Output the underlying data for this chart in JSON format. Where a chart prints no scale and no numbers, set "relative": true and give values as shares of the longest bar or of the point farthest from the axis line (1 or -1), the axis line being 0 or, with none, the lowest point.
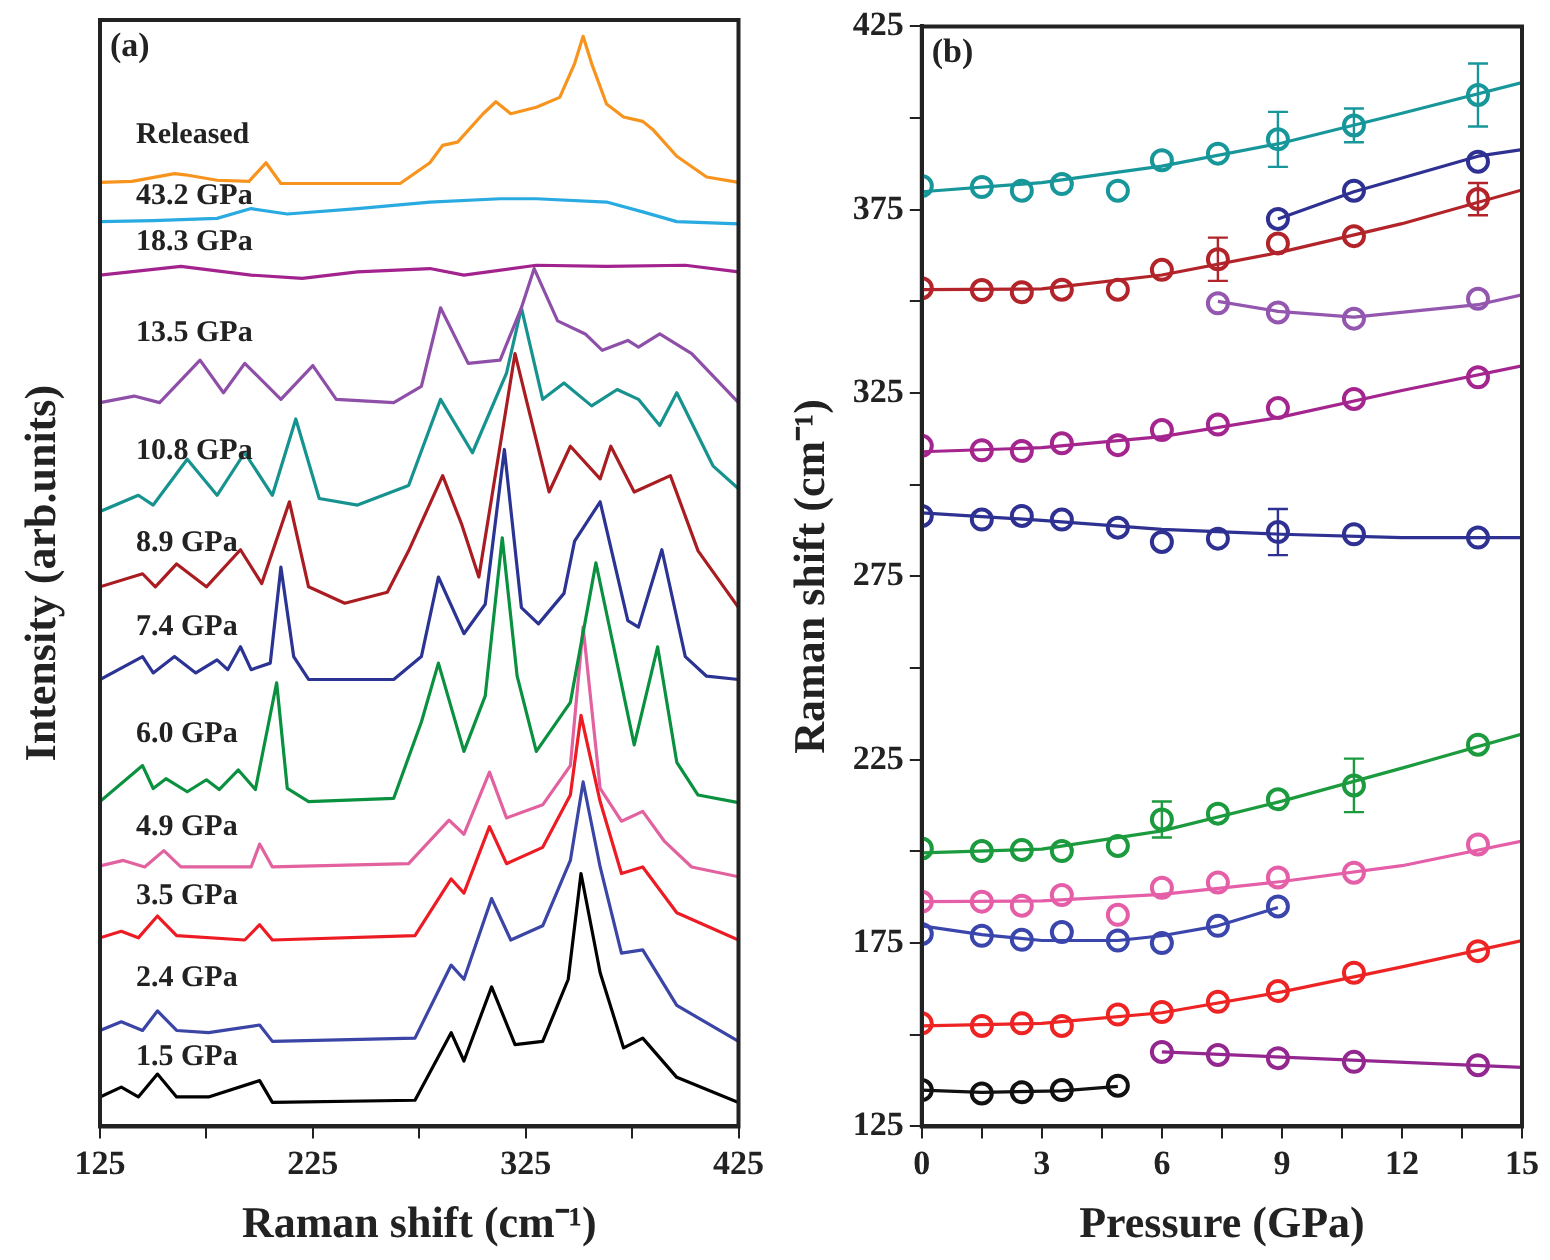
{
  "chart_data": [
    {
      "type": "line",
      "relative": true,
      "xlabel": "Raman shift (cm⁻¹)",
      "ylabel": "Intensity (arb.units)",
      "annotations": [
        "(a)"
      ],
      "tick_labels": "x",
      "xlim": [
        125,
        425
      ],
      "xticks": [
        125,
        {
          "value": 175,
          "label": null
        },
        225,
        {
          "value": 275,
          "label": null
        },
        325,
        {
          "value": 375,
          "label": null
        },
        425
      ],
      "legend": false,
      "series": [
        {
          "name": "Released",
          "color": "#f7941d",
          "x": [
            125,
            140,
            160,
            165,
            180,
            195,
            203,
            210,
            266,
            280,
            286,
            293,
            305,
            311,
            318,
            330,
            341,
            348,
            352,
            356,
            363,
            371,
            380,
            385,
            396,
            410,
            425
          ],
          "values": [
            0.866,
            0.867,
            0.874,
            0.873,
            0.868,
            0.867,
            0.884,
            0.865,
            0.865,
            0.884,
            0.9,
            0.903,
            0.929,
            0.94,
            0.929,
            0.935,
            0.944,
            0.975,
            1.0,
            0.975,
            0.938,
            0.926,
            0.922,
            0.914,
            0.89,
            0.871,
            0.866
          ]
        },
        {
          "name": "43.2 GPa",
          "color": "#29abe2",
          "x": [
            125,
            150,
            180,
            196,
            213,
            246,
            280,
            313,
            330,
            363,
            380,
            396,
            425
          ],
          "values": [
            0.83,
            0.831,
            0.833,
            0.842,
            0.837,
            0.842,
            0.848,
            0.851,
            0.851,
            0.848,
            0.839,
            0.83,
            0.828
          ]
        },
        {
          "name": "18.3 GPa",
          "color": "#a3238e",
          "x": [
            125,
            163,
            196,
            220,
            246,
            280,
            296,
            330,
            363,
            400,
            425
          ],
          "values": [
            0.781,
            0.789,
            0.781,
            0.778,
            0.784,
            0.787,
            0.781,
            0.79,
            0.789,
            0.79,
            0.784
          ]
        },
        {
          "name": "13.5 GPa",
          "color": "#8e4fa8",
          "x": [
            125,
            141,
            153,
            172,
            183,
            193,
            210,
            225,
            236,
            263,
            276,
            285,
            298,
            313,
            323,
            329,
            340,
            353,
            361,
            373,
            378,
            388,
            403,
            425
          ],
          "values": [
            0.664,
            0.67,
            0.664,
            0.703,
            0.673,
            0.7,
            0.667,
            0.698,
            0.667,
            0.664,
            0.679,
            0.751,
            0.7,
            0.703,
            0.751,
            0.787,
            0.739,
            0.727,
            0.712,
            0.721,
            0.715,
            0.727,
            0.709,
            0.664
          ]
        },
        {
          "name": "10.8 GPa",
          "color": "#16928f",
          "x": [
            125,
            143,
            150,
            166,
            180,
            193,
            206,
            217,
            228,
            246,
            270,
            285,
            300,
            316,
            323,
            333,
            343,
            356,
            368,
            378,
            388,
            396,
            413,
            425
          ],
          "values": [
            0.564,
            0.579,
            0.57,
            0.612,
            0.579,
            0.618,
            0.579,
            0.649,
            0.576,
            0.57,
            0.588,
            0.667,
            0.618,
            0.691,
            0.751,
            0.667,
            0.682,
            0.661,
            0.676,
            0.667,
            0.643,
            0.673,
            0.606,
            0.585
          ]
        },
        {
          "name": "8.9 GPa",
          "color": "#a91d22",
          "x": [
            125,
            145,
            151,
            161,
            175,
            191,
            201,
            214,
            223,
            240,
            260,
            270,
            286,
            295,
            303,
            320,
            326,
            336,
            346,
            360,
            365,
            376,
            393,
            406,
            425
          ],
          "values": [
            0.495,
            0.507,
            0.495,
            0.516,
            0.495,
            0.529,
            0.498,
            0.573,
            0.495,
            0.48,
            0.49,
            0.528,
            0.597,
            0.552,
            0.504,
            0.709,
            0.661,
            0.582,
            0.624,
            0.594,
            0.624,
            0.582,
            0.597,
            0.528,
            0.476
          ]
        },
        {
          "name": "7.4 GPa",
          "color": "#2b3393",
          "x": [
            125,
            145,
            150,
            160,
            170,
            180,
            185,
            191,
            196,
            205,
            210,
            216,
            223,
            263,
            276,
            284,
            296,
            306,
            315,
            323,
            331,
            343,
            348,
            360,
            373,
            378,
            389,
            400,
            410,
            425
          ],
          "values": [
            0.41,
            0.431,
            0.416,
            0.431,
            0.416,
            0.428,
            0.419,
            0.44,
            0.419,
            0.425,
            0.513,
            0.431,
            0.41,
            0.41,
            0.431,
            0.504,
            0.452,
            0.479,
            0.621,
            0.476,
            0.461,
            0.489,
            0.537,
            0.573,
            0.464,
            0.458,
            0.529,
            0.431,
            0.413,
            0.41
          ]
        },
        {
          "name": "6.0 GPa",
          "color": "#0a9140",
          "x": [
            125,
            145,
            150,
            156,
            166,
            175,
            181,
            190,
            198,
            208,
            213,
            223,
            263,
            276,
            284,
            296,
            306,
            314,
            321,
            330,
            346,
            358,
            366,
            376,
            387,
            396,
            406,
            425
          ],
          "values": [
            0.298,
            0.331,
            0.31,
            0.319,
            0.307,
            0.318,
            0.309,
            0.327,
            0.309,
            0.407,
            0.31,
            0.298,
            0.301,
            0.371,
            0.425,
            0.344,
            0.395,
            0.54,
            0.413,
            0.344,
            0.389,
            0.517,
            0.443,
            0.35,
            0.44,
            0.334,
            0.304,
            0.297
          ]
        },
        {
          "name": "4.9 GPa",
          "color": "#e2619f",
          "x": [
            125,
            136,
            146,
            155,
            163,
            196,
            200,
            206,
            270,
            289,
            296,
            308,
            316,
            333,
            346,
            352,
            360,
            370,
            380,
            390,
            403,
            425
          ],
          "values": [
            0.239,
            0.244,
            0.238,
            0.253,
            0.238,
            0.238,
            0.259,
            0.238,
            0.241,
            0.281,
            0.268,
            0.325,
            0.283,
            0.295,
            0.331,
            0.458,
            0.31,
            0.28,
            0.289,
            0.262,
            0.238,
            0.229
          ]
        },
        {
          "name": "3.5 GPa",
          "color": "#ed1c24",
          "x": [
            125,
            135,
            143,
            152,
            161,
            193,
            200,
            206,
            273,
            290,
            296,
            308,
            316,
            333,
            346,
            351,
            360,
            370,
            380,
            396,
            425
          ],
          "values": [
            0.173,
            0.179,
            0.173,
            0.193,
            0.175,
            0.171,
            0.185,
            0.171,
            0.175,
            0.227,
            0.214,
            0.275,
            0.241,
            0.256,
            0.304,
            0.377,
            0.298,
            0.232,
            0.238,
            0.196,
            0.171
          ]
        },
        {
          "name": "2.4 GPa",
          "color": "#3a45a5",
          "x": [
            125,
            135,
            145,
            152,
            161,
            176,
            200,
            206,
            273,
            290,
            296,
            309,
            318,
            333,
            346,
            352,
            360,
            370,
            380,
            396,
            425
          ],
          "values": [
            0.088,
            0.096,
            0.088,
            0.106,
            0.088,
            0.086,
            0.093,
            0.078,
            0.081,
            0.148,
            0.135,
            0.209,
            0.171,
            0.184,
            0.244,
            0.316,
            0.238,
            0.159,
            0.162,
            0.111,
            0.078
          ]
        },
        {
          "name": "1.5 GPa",
          "color": "#000000",
          "x": [
            125,
            135,
            143,
            152,
            161,
            176,
            200,
            206,
            273,
            290,
            296,
            309,
            320,
            333,
            345,
            351,
            360,
            371,
            380,
            396,
            425
          ],
          "values": [
            0.027,
            0.036,
            0.027,
            0.048,
            0.027,
            0.027,
            0.042,
            0.022,
            0.024,
            0.086,
            0.06,
            0.128,
            0.075,
            0.078,
            0.135,
            0.232,
            0.141,
            0.072,
            0.081,
            0.045,
            0.022
          ]
        }
      ]
    },
    {
      "type": "scatter",
      "xlabel": "Pressure (GPa)",
      "ylabel": "Raman shift (cm⁻¹)",
      "annotations": [
        "(b)"
      ],
      "marker": "circle",
      "legend": false,
      "xlim": [
        0,
        15
      ],
      "xticks": [
        0,
        {
          "value": 1.5,
          "label": null
        },
        3,
        {
          "value": 4.5,
          "label": null
        },
        6,
        {
          "value": 7.5,
          "label": null
        },
        9,
        {
          "value": 10.5,
          "label": null
        },
        12,
        {
          "value": 13.5,
          "label": null
        },
        15
      ],
      "ylim": [
        125,
        425
      ],
      "yticks": [
        125,
        {
          "value": 150,
          "label": null
        },
        175,
        {
          "value": 200,
          "label": null
        },
        225,
        {
          "value": 250,
          "label": null
        },
        275,
        {
          "value": 300,
          "label": null
        },
        325,
        {
          "value": 350,
          "label": null
        },
        375,
        {
          "value": 400,
          "label": null
        },
        425
      ],
      "series": [
        {
          "color": "#17979a",
          "x": [
            0,
            1.5,
            2.5,
            3.5,
            4.9,
            6.0,
            7.4,
            8.9,
            10.8,
            13.9
          ],
          "values": [
            381.5,
            381.2,
            380.2,
            382,
            380.2,
            388.5,
            390.3,
            394.2,
            398,
            406.3
          ],
          "errors": [
            null,
            null,
            null,
            null,
            null,
            null,
            null,
            7.5,
            4.6,
            8.6
          ]
        },
        {
          "type": "line",
          "marker": "none",
          "color": "#17979a",
          "x": [
            0,
            3,
            6,
            9,
            12,
            15
          ],
          "values": [
            379.9,
            382.4,
            386.9,
            393.2,
            401.3,
            409.7
          ]
        },
        {
          "color": "#2e3192",
          "x": [
            8.9,
            10.8,
            13.9
          ],
          "values": [
            372.5,
            380.2,
            388.1
          ]
        },
        {
          "type": "line",
          "marker": "none",
          "color": "#2e3192",
          "x": [
            8.9,
            10.8,
            13.9,
            15
          ],
          "values": [
            372.5,
            379.9,
            389.6,
            391.4
          ]
        },
        {
          "color": "#b2242a",
          "x": [
            0,
            1.5,
            2.5,
            3.5,
            4.9,
            6.0,
            7.4,
            8.9,
            10.8,
            13.9
          ],
          "values": [
            353.6,
            353.1,
            352.5,
            353.2,
            353.2,
            358.6,
            361.5,
            365.8,
            367.8,
            377.9
          ],
          "errors": [
            null,
            null,
            null,
            null,
            null,
            null,
            5.9,
            null,
            null,
            4.4
          ]
        },
        {
          "type": "line",
          "marker": "none",
          "color": "#b2242a",
          "x": [
            0,
            3,
            6,
            9,
            12,
            15
          ],
          "values": [
            353.2,
            353.4,
            357.2,
            363.5,
            371.2,
            380.4
          ]
        },
        {
          "color": "#9457b0",
          "x": [
            7.4,
            8.9,
            10.8,
            13.9
          ],
          "values": [
            349.5,
            347,
            345.3,
            350.7
          ]
        },
        {
          "type": "line",
          "marker": "none",
          "color": "#9457b0",
          "x": [
            7.4,
            8.9,
            10.8,
            13.9,
            15
          ],
          "values": [
            350,
            347.3,
            345.7,
            349.1,
            351.8
          ]
        },
        {
          "color": "#a5258f",
          "x": [
            0,
            1.5,
            2.5,
            3.5,
            4.9,
            6.0,
            7.4,
            8.9,
            10.8,
            13.9
          ],
          "values": [
            310.6,
            309.4,
            309.2,
            311.3,
            310.8,
            314.9,
            316.4,
            320.9,
            323.4,
            329.3
          ]
        },
        {
          "type": "line",
          "marker": "none",
          "color": "#a5258f",
          "x": [
            0,
            3,
            6,
            9,
            12,
            15
          ],
          "values": [
            309,
            310.1,
            313.1,
            318.5,
            325.7,
            332.4
          ]
        },
        {
          "color": "#2e3192",
          "x": [
            0,
            1.5,
            2.5,
            3.5,
            4.9,
            6.0,
            7.4,
            8.9,
            10.8,
            13.9
          ],
          "values": [
            291.5,
            290.5,
            291.5,
            290.5,
            288.3,
            284.4,
            285.3,
            287.1,
            286.5,
            285.6
          ],
          "errors": [
            null,
            null,
            null,
            null,
            null,
            null,
            null,
            6.3,
            null,
            null
          ]
        },
        {
          "type": "line",
          "marker": "none",
          "color": "#2e3192",
          "x": [
            0,
            3,
            6,
            9,
            12,
            15
          ],
          "values": [
            292.3,
            290.3,
            287.8,
            286.5,
            285.6,
            285.6
          ]
        },
        {
          "color": "#1c9a3e",
          "x": [
            0,
            1.5,
            2.5,
            3.5,
            4.9,
            6.0,
            7.4,
            8.9,
            10.8,
            13.9
          ],
          "values": [
            200.8,
            200.1,
            200.4,
            200.1,
            201.5,
            208.7,
            210.3,
            214.2,
            218,
            229.1
          ],
          "errors": [
            null,
            null,
            null,
            null,
            null,
            4.9,
            null,
            null,
            7.3,
            null
          ]
        },
        {
          "type": "line",
          "marker": "none",
          "color": "#1c9a3e",
          "x": [
            0,
            3,
            6,
            9,
            12,
            15
          ],
          "values": [
            199.6,
            200.6,
            205.6,
            213.7,
            222.7,
            232
          ]
        },
        {
          "color": "#e55fa8",
          "x": [
            0,
            1.5,
            2.5,
            3.5,
            4.9,
            6.0,
            7.4,
            8.9,
            10.8,
            13.9
          ],
          "values": [
            186.3,
            186.3,
            185.2,
            188.1,
            182.7,
            190.1,
            191.5,
            192.9,
            194.2,
            201.9
          ]
        },
        {
          "type": "line",
          "marker": "none",
          "color": "#e55fa8",
          "x": [
            0,
            3,
            6,
            9,
            12,
            15
          ],
          "values": [
            186.3,
            186.5,
            188.3,
            191.8,
            196.1,
            202.8
          ]
        },
        {
          "color": "#3b46ad",
          "x": [
            0,
            1.5,
            2.5,
            3.5,
            4.9,
            6.0,
            7.4,
            8.9
          ],
          "values": [
            177.5,
            177,
            175.9,
            178,
            175.7,
            175,
            179.7,
            185
          ]
        },
        {
          "type": "line",
          "marker": "none",
          "color": "#3b46ad",
          "x": [
            0,
            1.5,
            3,
            4.9,
            6,
            7.4,
            8.9
          ],
          "values": [
            179.7,
            177.3,
            175.7,
            175.7,
            177,
            179.7,
            184.7
          ]
        },
        {
          "color": "#ee2424",
          "x": [
            0,
            1.5,
            2.5,
            3.5,
            4.9,
            6.0,
            7.4,
            8.9,
            10.8,
            13.9
          ],
          "values": [
            153.1,
            152.4,
            153.1,
            152.4,
            155.5,
            156.2,
            159,
            161.9,
            166.9,
            172.8
          ]
        },
        {
          "type": "line",
          "marker": "none",
          "color": "#ee2424",
          "x": [
            0,
            3,
            6,
            9,
            12,
            15
          ],
          "values": [
            152.4,
            153.1,
            156,
            161.7,
            168.5,
            175.7
          ]
        },
        {
          "color": "#93278f",
          "x": [
            6.0,
            7.4,
            8.9,
            10.8,
            13.9
          ],
          "values": [
            145.3,
            144.5,
            143.6,
            142.6,
            141.7
          ]
        },
        {
          "type": "line",
          "marker": "none",
          "color": "#93278f",
          "x": [
            6,
            15
          ],
          "values": [
            145.3,
            141.1
          ]
        },
        {
          "color": "#111111",
          "x": [
            0,
            1.5,
            2.5,
            3.5,
            4.9
          ],
          "values": [
            134.9,
            134,
            134.3,
            134.9,
            136.1
          ]
        },
        {
          "type": "line",
          "marker": "none",
          "color": "#111111",
          "x": [
            0,
            1.5,
            3.5,
            4.9
          ],
          "values": [
            134.9,
            134.3,
            134.7,
            135.9
          ]
        }
      ]
    }
  ]
}
